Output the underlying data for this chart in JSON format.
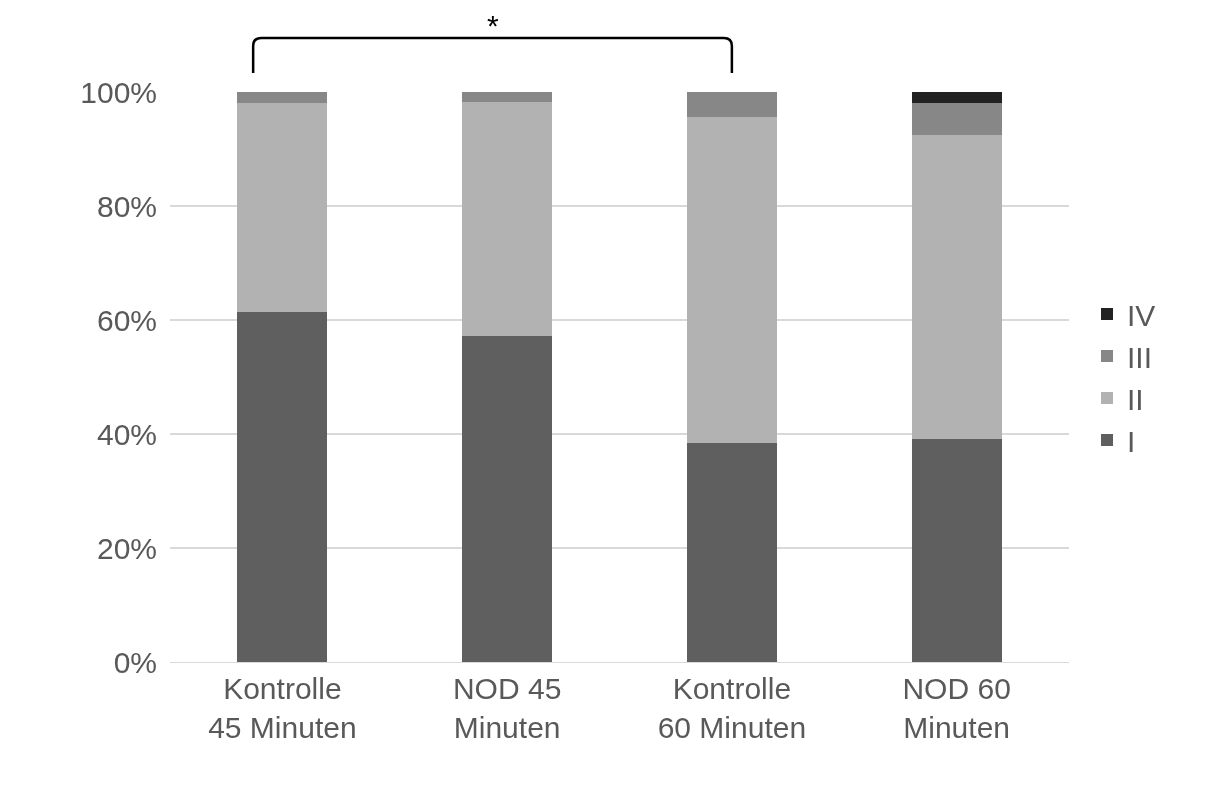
{
  "chart_data": {
    "type": "bar",
    "stacked": true,
    "categories": [
      "Kontrolle\n45 Minuten",
      "NOD 45\nMinuten",
      "Kontrolle\n60 Minuten",
      "NOD 60\nMinuten"
    ],
    "series": [
      {
        "name": "I",
        "color": "#5f5f5f",
        "values": [
          61.4,
          57.2,
          38.4,
          39.1
        ]
      },
      {
        "name": "II",
        "color": "#b2b2b2",
        "values": [
          36.6,
          41.0,
          57.2,
          53.4
        ]
      },
      {
        "name": "III",
        "color": "#878787",
        "values": [
          2.0,
          1.8,
          4.4,
          5.5
        ]
      },
      {
        "name": "IV",
        "color": "#222222",
        "values": [
          0,
          0,
          0,
          2.0
        ]
      }
    ],
    "ylim": [
      0,
      100
    ],
    "yticks": [
      {
        "value": 0,
        "label": "0%"
      },
      {
        "value": 20,
        "label": "20%"
      },
      {
        "value": 40,
        "label": "40%"
      },
      {
        "value": 60,
        "label": "60%"
      },
      {
        "value": 80,
        "label": "80%"
      },
      {
        "value": 100,
        "label": "100%"
      }
    ],
    "grid": "y",
    "legend": "right",
    "annotations": [
      "*"
    ]
  }
}
